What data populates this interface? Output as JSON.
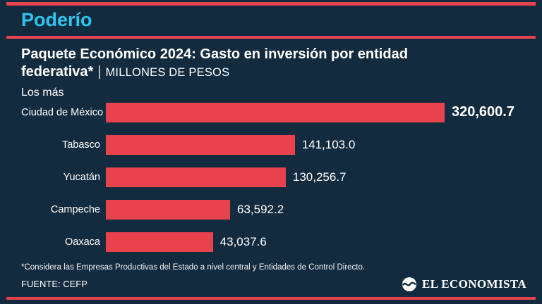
{
  "brand": {
    "masthead": "Poderío",
    "accent_color": "#e8434c",
    "cyan_color": "#2bc7f0",
    "background_color": "#132b3e"
  },
  "header": {
    "title": "Paquete Económico 2024: Gasto en inversión por entidad federativa*",
    "separator": "|",
    "units": "MILLONES DE PESOS"
  },
  "chart_data": {
    "type": "bar",
    "orientation": "horizontal",
    "group_label": "Los más",
    "categories": [
      "Ciudad de México",
      "Tabasco",
      "Yucatán",
      "Campeche",
      "Oaxaca"
    ],
    "values": [
      320600.7,
      141103.0,
      130256.7,
      63592.2,
      43037.6
    ],
    "value_labels": [
      "320,600.7",
      "141,103.0",
      "130,256.7",
      "63,592.2",
      "43,037.6"
    ],
    "units": "Millones de pesos",
    "bar_color": "#e8434c",
    "xlim": [
      0,
      320600.7
    ],
    "grid": false,
    "legend": false,
    "bar_min_fraction": 0.21
  },
  "footer": {
    "footnote": "*Considera las Empresas Productivas del Estado a nivel central y Entidades de Control Directo.",
    "source": "FUENTE: CEFP",
    "logo_text": "EL ECONOMISTA"
  }
}
